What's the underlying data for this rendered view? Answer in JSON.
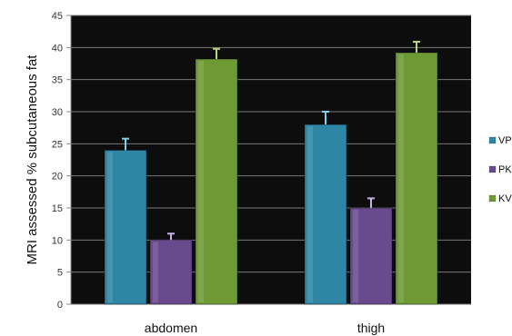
{
  "chart_data": {
    "type": "bar",
    "categories": [
      "abdomen",
      "thigh"
    ],
    "series": [
      {
        "name": "VP",
        "values": [
          24,
          28
        ],
        "errors": [
          1.8,
          2.0
        ],
        "color": "#2e86a4"
      },
      {
        "name": "PK",
        "values": [
          10,
          15
        ],
        "errors": [
          1.0,
          1.5
        ],
        "color": "#6a4a8e"
      },
      {
        "name": "KV",
        "values": [
          38.2,
          39.2
        ],
        "errors": [
          1.6,
          1.7
        ],
        "color": "#6e9a34"
      }
    ],
    "ylabel": "MRI assessed % subcutaneous  fat",
    "ylim": [
      0,
      45
    ],
    "yticks": [
      0,
      5,
      10,
      15,
      20,
      25,
      30,
      35,
      40,
      45
    ],
    "grid": true,
    "legend_position": "right",
    "plot_background": "#0d0d0d",
    "error_bar_colors": [
      "#7fd2ea",
      "#c7b3e8",
      "#b7d77a"
    ]
  }
}
